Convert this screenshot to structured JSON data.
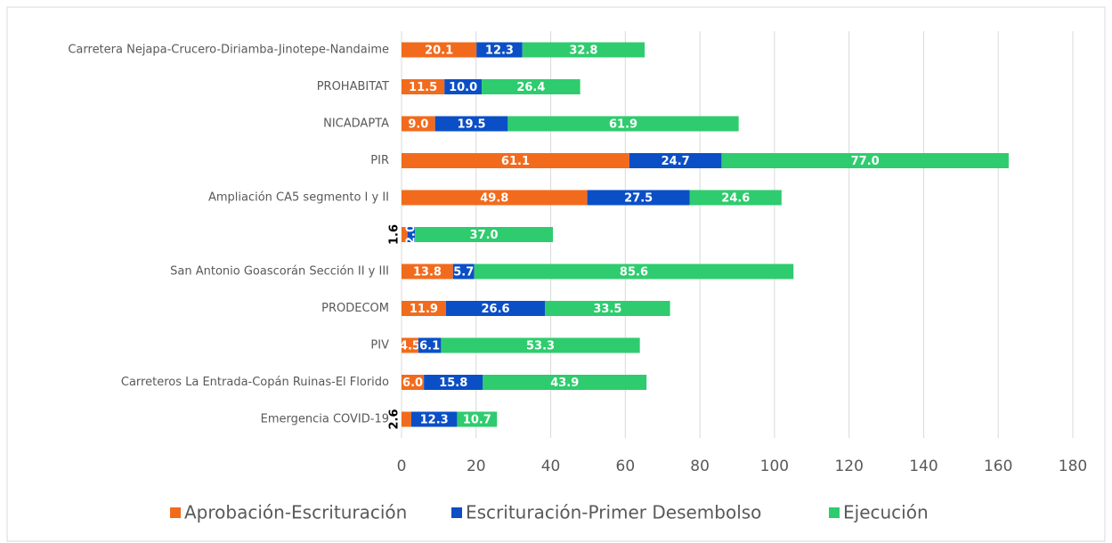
{
  "chart_data": {
    "type": "stacked-barh",
    "categories": [
      "Carretera Nejapa-Crucero-Diriamba-Jinotepe-Nandaime",
      "PROHABITAT",
      "NICADAPTA",
      "PIR",
      "Ampliación CA5 segmento I y II",
      null,
      "San Antonio Goascorán Sección II y III",
      "PRODECOM",
      "PIV",
      "Carreteros La Entrada-Copán Ruinas-El Florido",
      "Emergencia COVID-19"
    ],
    "series": [
      {
        "name": "Aprobación-Escrituración",
        "color": "#f26b1d",
        "values": [
          20.1,
          11.5,
          9.0,
          61.1,
          49.8,
          1.6,
          13.8,
          11.9,
          4.5,
          6.0,
          2.6
        ],
        "value_labels": [
          "20.1",
          "11.5",
          "9.0",
          "61.1",
          "49.8",
          "1.6",
          "13.8",
          "11.9",
          "4.5",
          "6.0",
          "2.6"
        ]
      },
      {
        "name": "Escrituración-Primer Desembolso",
        "color": "#0b4fc6",
        "values": [
          12.3,
          10.0,
          19.5,
          24.7,
          27.5,
          2.0,
          5.7,
          26.6,
          6.1,
          15.8,
          12.3
        ],
        "value_labels": [
          "12.3",
          "10.0",
          "19.5",
          "24.7",
          "27.5",
          "2.0",
          "5.7",
          "26.6",
          "6.1",
          "15.8",
          "12.3"
        ]
      },
      {
        "name": "Ejecución",
        "color": "#2ecc6e",
        "values": [
          32.8,
          26.4,
          61.9,
          77.0,
          24.6,
          37.0,
          85.6,
          33.5,
          53.3,
          43.9,
          10.7
        ],
        "value_labels": [
          "32.8",
          "26.4",
          "61.9",
          "77.0",
          "24.6",
          "37.0",
          "85.6",
          "33.5",
          "53.3",
          "43.9",
          "10.7"
        ]
      }
    ],
    "xlim": [
      0,
      180
    ],
    "xticks": [
      0,
      20,
      40,
      60,
      80,
      100,
      120,
      140,
      160,
      180
    ],
    "grid": true
  }
}
